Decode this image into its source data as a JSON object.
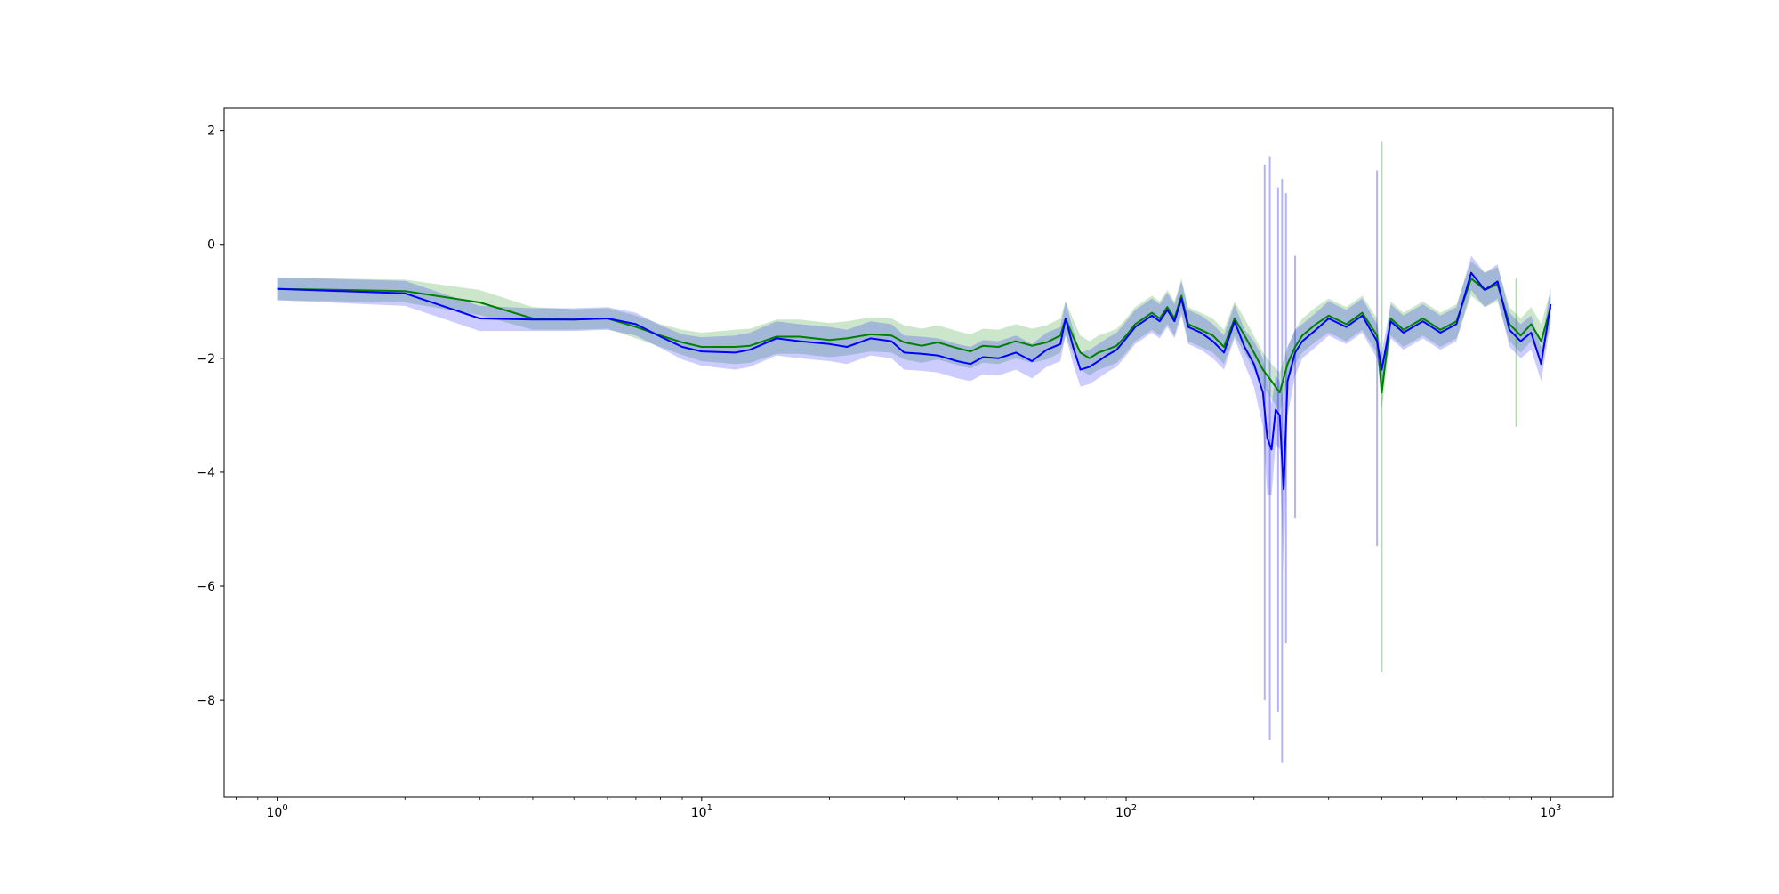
{
  "chart_data": {
    "type": "line",
    "title": "",
    "xlabel": "",
    "ylabel": "",
    "xscale": "log",
    "xlim": [
      0.75,
      1400
    ],
    "ylim": [
      -9.7,
      2.4
    ],
    "grid": false,
    "legend": "none",
    "x_tick_labels": [
      {
        "value": 1,
        "base": "10",
        "exp": "0"
      },
      {
        "value": 10,
        "base": "10",
        "exp": "1"
      },
      {
        "value": 100,
        "base": "10",
        "exp": "2"
      },
      {
        "value": 1000,
        "base": "10",
        "exp": "3"
      }
    ],
    "y_ticks": [
      2,
      0,
      -2,
      -4,
      -6,
      -8
    ],
    "y_tick_labels": [
      "2",
      "0",
      "−2",
      "−4",
      "−6",
      "−8"
    ],
    "series": [
      {
        "color": "#008000",
        "band_color": "#008000",
        "band_opacity": 0.2,
        "points": [
          [
            1,
            -0.78,
            0.2
          ],
          [
            2,
            -0.82,
            0.2
          ],
          [
            3,
            -1.02,
            0.22
          ],
          [
            4,
            -1.3,
            0.2
          ],
          [
            5,
            -1.32,
            0.18
          ],
          [
            6,
            -1.3,
            0.18
          ],
          [
            7,
            -1.45,
            0.2
          ],
          [
            8,
            -1.6,
            0.2
          ],
          [
            9,
            -1.72,
            0.22
          ],
          [
            10,
            -1.8,
            0.25
          ],
          [
            12,
            -1.8,
            0.3
          ],
          [
            13,
            -1.78,
            0.3
          ],
          [
            15,
            -1.62,
            0.3
          ],
          [
            17,
            -1.62,
            0.3
          ],
          [
            20,
            -1.68,
            0.3
          ],
          [
            22,
            -1.65,
            0.3
          ],
          [
            25,
            -1.58,
            0.3
          ],
          [
            28,
            -1.6,
            0.3
          ],
          [
            30,
            -1.72,
            0.3
          ],
          [
            33,
            -1.78,
            0.3
          ],
          [
            36,
            -1.72,
            0.3
          ],
          [
            40,
            -1.82,
            0.3
          ],
          [
            43,
            -1.88,
            0.3
          ],
          [
            46,
            -1.78,
            0.3
          ],
          [
            50,
            -1.8,
            0.3
          ],
          [
            55,
            -1.7,
            0.3
          ],
          [
            60,
            -1.78,
            0.3
          ],
          [
            65,
            -1.72,
            0.3
          ],
          [
            70,
            -1.6,
            0.3
          ],
          [
            72,
            -1.3,
            0.3
          ],
          [
            75,
            -1.62,
            0.3
          ],
          [
            78,
            -1.9,
            0.3
          ],
          [
            82,
            -2.0,
            0.3
          ],
          [
            86,
            -1.9,
            0.3
          ],
          [
            90,
            -1.85,
            0.3
          ],
          [
            95,
            -1.78,
            0.3
          ],
          [
            100,
            -1.6,
            0.3
          ],
          [
            105,
            -1.4,
            0.3
          ],
          [
            110,
            -1.3,
            0.3
          ],
          [
            115,
            -1.2,
            0.3
          ],
          [
            120,
            -1.3,
            0.3
          ],
          [
            125,
            -1.1,
            0.3
          ],
          [
            130,
            -1.3,
            0.3
          ],
          [
            135,
            -0.9,
            0.3
          ],
          [
            140,
            -1.4,
            0.3
          ],
          [
            150,
            -1.5,
            0.3
          ],
          [
            160,
            -1.6,
            0.3
          ],
          [
            170,
            -1.8,
            0.3
          ],
          [
            180,
            -1.3,
            0.3
          ],
          [
            190,
            -1.6,
            0.3
          ],
          [
            200,
            -1.9,
            0.3
          ],
          [
            210,
            -2.2,
            0.3
          ],
          [
            220,
            -2.4,
            0.3
          ],
          [
            230,
            -2.6,
            0.35
          ],
          [
            240,
            -2.1,
            0.3
          ],
          [
            250,
            -1.8,
            0.3
          ],
          [
            260,
            -1.6,
            0.3
          ],
          [
            280,
            -1.4,
            0.3
          ],
          [
            300,
            -1.25,
            0.3
          ],
          [
            330,
            -1.4,
            0.3
          ],
          [
            360,
            -1.2,
            0.3
          ],
          [
            390,
            -1.6,
            0.3
          ],
          [
            400,
            -2.6,
            0.3
          ],
          [
            420,
            -1.3,
            0.3
          ],
          [
            450,
            -1.5,
            0.3
          ],
          [
            500,
            -1.3,
            0.3
          ],
          [
            550,
            -1.5,
            0.3
          ],
          [
            600,
            -1.35,
            0.3
          ],
          [
            650,
            -0.6,
            0.3
          ],
          [
            700,
            -0.8,
            0.3
          ],
          [
            750,
            -0.7,
            0.3
          ],
          [
            800,
            -1.4,
            0.3
          ],
          [
            850,
            -1.6,
            0.3
          ],
          [
            900,
            -1.4,
            0.3
          ],
          [
            950,
            -1.7,
            0.3
          ],
          [
            1000,
            -1.1,
            0.3
          ]
        ]
      },
      {
        "color": "#0000ff",
        "band_color": "#0000ff",
        "band_opacity": 0.2,
        "points": [
          [
            1,
            -0.78,
            0.2
          ],
          [
            2,
            -0.86,
            0.22
          ],
          [
            3,
            -1.3,
            0.22
          ],
          [
            4,
            -1.32,
            0.2
          ],
          [
            5,
            -1.32,
            0.2
          ],
          [
            6,
            -1.3,
            0.2
          ],
          [
            7,
            -1.4,
            0.2
          ],
          [
            8,
            -1.62,
            0.2
          ],
          [
            9,
            -1.8,
            0.22
          ],
          [
            10,
            -1.88,
            0.25
          ],
          [
            12,
            -1.9,
            0.3
          ],
          [
            13,
            -1.85,
            0.3
          ],
          [
            15,
            -1.65,
            0.3
          ],
          [
            17,
            -1.7,
            0.3
          ],
          [
            20,
            -1.75,
            0.3
          ],
          [
            22,
            -1.8,
            0.3
          ],
          [
            25,
            -1.65,
            0.3
          ],
          [
            28,
            -1.7,
            0.3
          ],
          [
            30,
            -1.9,
            0.3
          ],
          [
            33,
            -1.92,
            0.3
          ],
          [
            36,
            -1.95,
            0.3
          ],
          [
            40,
            -2.05,
            0.3
          ],
          [
            43,
            -2.1,
            0.3
          ],
          [
            46,
            -1.98,
            0.3
          ],
          [
            50,
            -2.0,
            0.3
          ],
          [
            55,
            -1.9,
            0.3
          ],
          [
            60,
            -2.05,
            0.3
          ],
          [
            65,
            -1.85,
            0.3
          ],
          [
            70,
            -1.75,
            0.3
          ],
          [
            72,
            -1.3,
            0.3
          ],
          [
            75,
            -1.8,
            0.3
          ],
          [
            78,
            -2.2,
            0.3
          ],
          [
            82,
            -2.15,
            0.3
          ],
          [
            86,
            -2.05,
            0.3
          ],
          [
            90,
            -1.95,
            0.3
          ],
          [
            95,
            -1.85,
            0.3
          ],
          [
            100,
            -1.65,
            0.3
          ],
          [
            105,
            -1.45,
            0.3
          ],
          [
            110,
            -1.35,
            0.3
          ],
          [
            115,
            -1.25,
            0.3
          ],
          [
            120,
            -1.35,
            0.3
          ],
          [
            125,
            -1.15,
            0.3
          ],
          [
            130,
            -1.35,
            0.3
          ],
          [
            135,
            -0.95,
            0.3
          ],
          [
            140,
            -1.45,
            0.3
          ],
          [
            150,
            -1.55,
            0.3
          ],
          [
            160,
            -1.7,
            0.3
          ],
          [
            170,
            -1.9,
            0.3
          ],
          [
            180,
            -1.35,
            0.3
          ],
          [
            190,
            -1.8,
            0.3
          ],
          [
            200,
            -2.1,
            0.4
          ],
          [
            210,
            -2.6,
            0.6
          ],
          [
            215,
            -3.4,
            1.0
          ],
          [
            220,
            -3.6,
            0.8
          ],
          [
            225,
            -2.9,
            0.6
          ],
          [
            230,
            -3.0,
            0.6
          ],
          [
            235,
            -4.3,
            1.5
          ],
          [
            240,
            -2.4,
            0.6
          ],
          [
            250,
            -1.9,
            0.4
          ],
          [
            260,
            -1.7,
            0.3
          ],
          [
            280,
            -1.5,
            0.3
          ],
          [
            300,
            -1.3,
            0.3
          ],
          [
            330,
            -1.45,
            0.3
          ],
          [
            360,
            -1.25,
            0.3
          ],
          [
            390,
            -1.7,
            0.3
          ],
          [
            400,
            -2.2,
            0.3
          ],
          [
            420,
            -1.35,
            0.3
          ],
          [
            450,
            -1.55,
            0.3
          ],
          [
            500,
            -1.35,
            0.3
          ],
          [
            550,
            -1.55,
            0.3
          ],
          [
            600,
            -1.4,
            0.3
          ],
          [
            650,
            -0.5,
            0.3
          ],
          [
            700,
            -0.8,
            0.3
          ],
          [
            750,
            -0.65,
            0.3
          ],
          [
            800,
            -1.5,
            0.3
          ],
          [
            850,
            -1.7,
            0.3
          ],
          [
            900,
            -1.55,
            0.3
          ],
          [
            950,
            -2.1,
            0.3
          ],
          [
            1000,
            -1.05,
            0.3
          ]
        ]
      }
    ],
    "spikes": [
      {
        "x": 212,
        "low": -8.0,
        "high": 1.4,
        "color": "#0000ff"
      },
      {
        "x": 218,
        "low": -8.7,
        "high": 1.55,
        "color": "#0000ff"
      },
      {
        "x": 228,
        "low": -8.2,
        "high": 1.0,
        "color": "#0000ff"
      },
      {
        "x": 233,
        "low": -9.1,
        "high": 1.15,
        "color": "#0000ff"
      },
      {
        "x": 238,
        "low": -7.0,
        "high": 0.9,
        "color": "#0000ff"
      },
      {
        "x": 250,
        "low": -4.8,
        "high": -0.2,
        "color": "#0000ff"
      },
      {
        "x": 390,
        "low": -5.3,
        "high": 1.3,
        "color": "#0000ff"
      },
      {
        "x": 400,
        "low": -7.5,
        "high": 1.8,
        "color": "#008000"
      },
      {
        "x": 830,
        "low": -3.2,
        "high": -0.6,
        "color": "#008000"
      }
    ]
  }
}
